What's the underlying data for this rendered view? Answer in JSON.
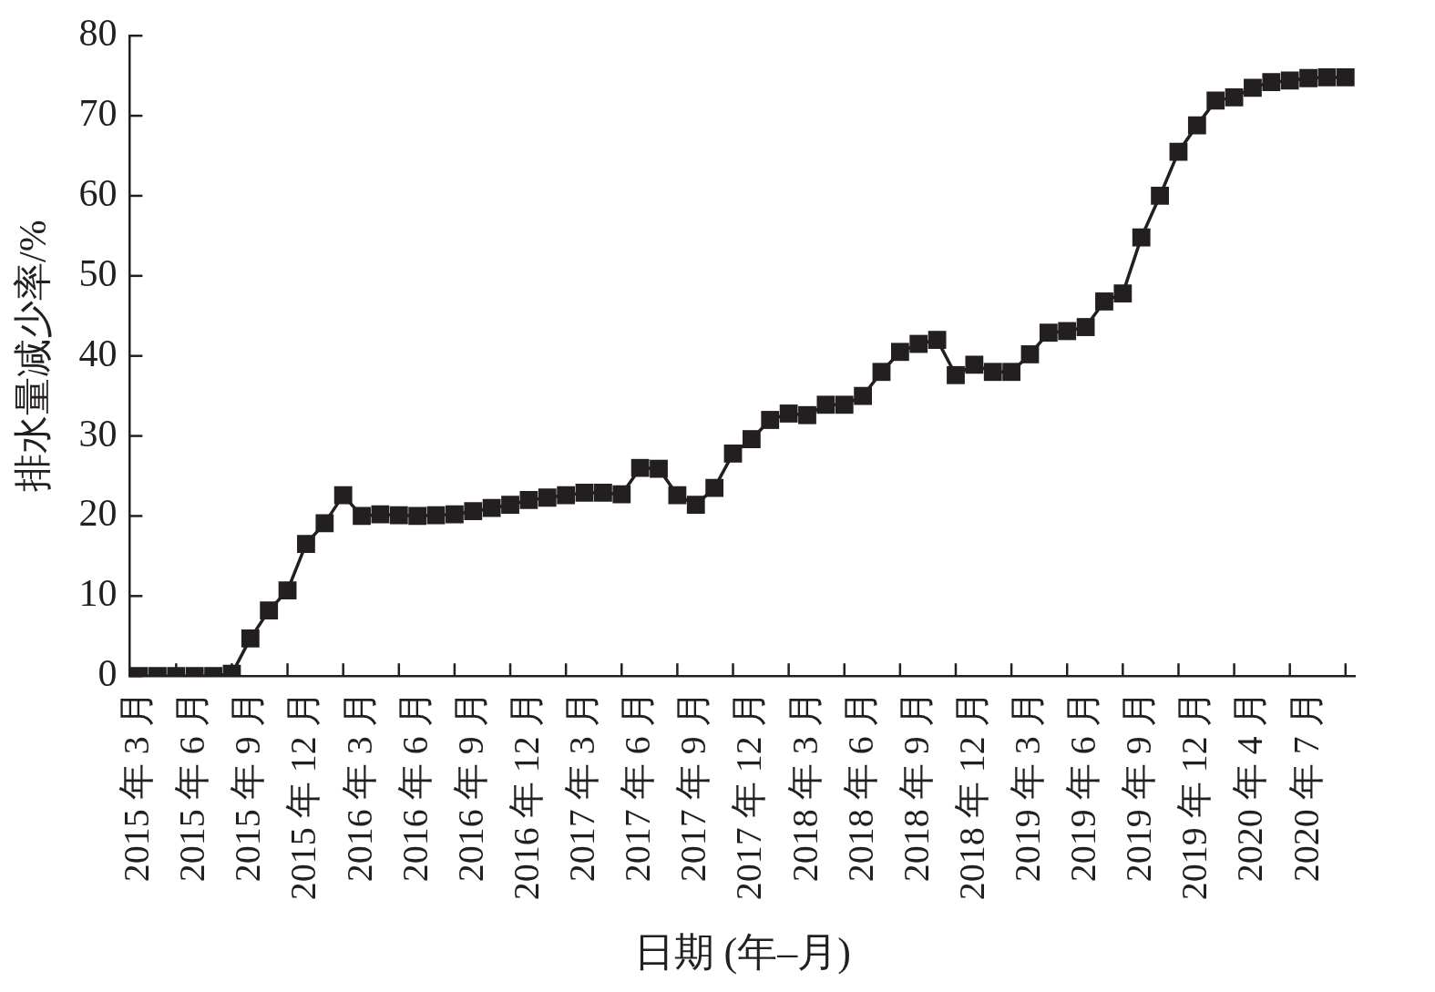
{
  "chart_data": {
    "type": "line",
    "xlabel": "日期 (年–月)",
    "ylabel": "排水量减少率/%",
    "categories": [
      "2015 年 3 月",
      null,
      null,
      "2015 年 6 月",
      null,
      null,
      "2015 年 9 月",
      null,
      null,
      "2015 年 12 月",
      null,
      null,
      "2016 年 3 月",
      null,
      null,
      "2016 年 6 月",
      null,
      null,
      "2016 年 9 月",
      null,
      null,
      "2016 年 12 月",
      null,
      null,
      "2017 年 3 月",
      null,
      null,
      "2017 年 6 月",
      null,
      null,
      "2017 年 9 月",
      null,
      null,
      "2017 年 12 月",
      null,
      null,
      "2018 年 3 月",
      null,
      null,
      "2018 年 6 月",
      null,
      null,
      "2018 年 9 月",
      null,
      null,
      "2018 年 12 月",
      null,
      null,
      "2019 年 3 月",
      null,
      null,
      "2019 年 6 月",
      null,
      null,
      "2019 年 9 月",
      null,
      null,
      "2019 年 12 月",
      null,
      null,
      "2020 年 4 月",
      null,
      null,
      "2020 年 7 月",
      null,
      null
    ],
    "values": [
      0,
      0,
      0,
      0,
      0,
      0.3,
      4.7,
      8.2,
      10.7,
      16.5,
      19.1,
      22.6,
      20.0,
      20.2,
      20.1,
      20.0,
      20.1,
      20.2,
      20.6,
      21.0,
      21.4,
      22.0,
      22.3,
      22.6,
      22.9,
      22.9,
      22.7,
      26.0,
      25.9,
      22.6,
      21.4,
      23.5,
      27.8,
      29.6,
      32.0,
      32.8,
      32.6,
      33.9,
      33.9,
      35.0,
      38.0,
      40.5,
      41.5,
      42.0,
      37.6,
      38.9,
      38.0,
      38.0,
      40.2,
      42.9,
      43.1,
      43.6,
      46.8,
      47.8,
      54.8,
      60.0,
      65.5,
      68.8,
      71.9,
      72.3,
      73.5,
      74.2,
      74.4,
      74.7,
      74.8,
      74.8
    ],
    "color": "#231f20",
    "ylim": [
      0,
      80
    ],
    "yticks": [
      0,
      10,
      20,
      30,
      40,
      50,
      60,
      70,
      80
    ],
    "grid": false,
    "legend": false,
    "marker": "square",
    "line_style": "solid"
  }
}
